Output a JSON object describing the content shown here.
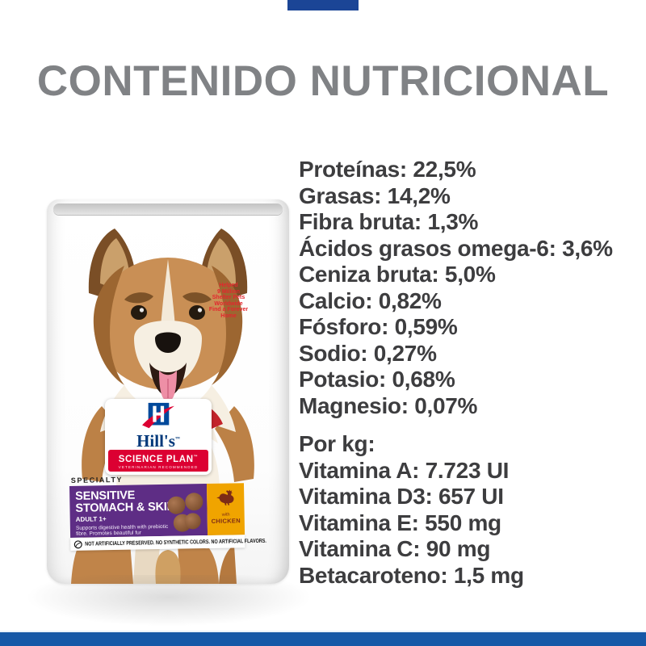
{
  "heading": {
    "text": "CONTENIDO NUTRICIONAL"
  },
  "colors": {
    "heading_gray": "#808285",
    "body_text": "#3d3d3f",
    "bottom_bar_blue": "#1558a7",
    "top_bar_blue": "#1b4596",
    "hills_blue": "#00499b",
    "hills_red": "#dc0032",
    "purple": "#5e2d85",
    "flavor_yellow": "#f0a400",
    "flavor_brown": "#7d2b16",
    "helped_red": "#e3262e"
  },
  "bag": {
    "helped_badge": [
      "Helped",
      "9 Million",
      "Shelter Pets",
      "Worldwide",
      "Find a Forever",
      "Home"
    ],
    "logo": {
      "brand": "Hill's",
      "tm": "™",
      "banner": "SCIENCE PLAN",
      "banner_tm": "™",
      "tagline": "VETERINARIAN RECOMMENDED"
    },
    "specialty": "SPECIALTY",
    "product_name_line1": "SENSITIVE",
    "product_name_line2": "STOMACH & SKIN",
    "age": "ADULT 1+",
    "description_line1": "Supports digestive health with prebiotic",
    "description_line2": "fibre. Promotes beautiful fur",
    "flavor_pre": "with",
    "flavor": "CHICKEN",
    "claims": "NOT ARTIFICIALLY PRESERVED. NO SYNTHETIC COLORS. NO ARTIFICIAL FLAVORS."
  },
  "nutrition": {
    "analysis_lines": [
      "Proteínas: 22,5%",
      "Grasas: 14,2%",
      "Fibra bruta: 1,3%",
      "Ácidos grasos omega-6: 3,6%",
      "Ceniza bruta: 5,0%",
      "Calcio: 0,82%",
      "Fósforo: 0,59%",
      "Sodio: 0,27%",
      "Potasio: 0,68%",
      "Magnesio: 0,07%"
    ],
    "per_kg_title": "Por kg:",
    "per_kg_lines": [
      "Vitamina A: 7.723 UI",
      "Vitamina D3: 657 UI",
      "Vitamina E: 550 mg",
      "Vitamina C: 90 mg",
      "Betacaroteno: 1,5 mg"
    ]
  }
}
